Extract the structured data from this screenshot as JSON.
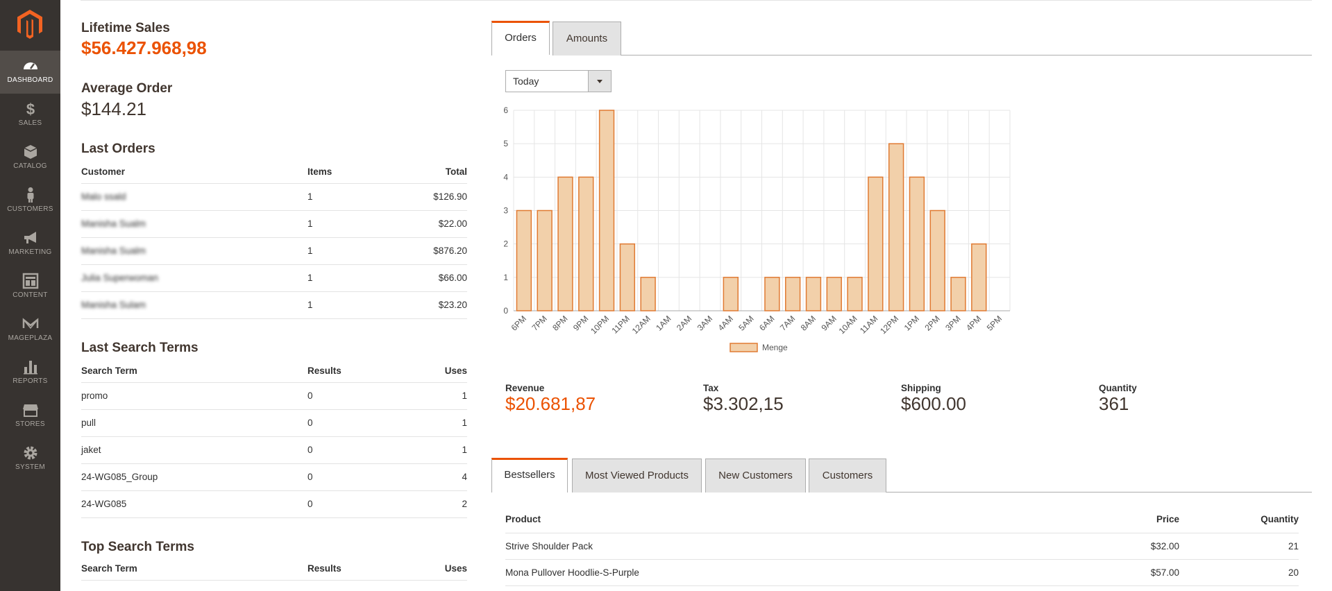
{
  "nav": [
    {
      "label": "DASHBOARD",
      "icon": "dashboard-icon",
      "active": true
    },
    {
      "label": "SALES",
      "icon": "dollar-icon"
    },
    {
      "label": "CATALOG",
      "icon": "box-icon"
    },
    {
      "label": "CUSTOMERS",
      "icon": "person-icon"
    },
    {
      "label": "MARKETING",
      "icon": "megaphone-icon"
    },
    {
      "label": "CONTENT",
      "icon": "layout-icon"
    },
    {
      "label": "MAGEPLAZA",
      "icon": "mageplaza-icon"
    },
    {
      "label": "REPORTS",
      "icon": "bar-chart-icon"
    },
    {
      "label": "STORES",
      "icon": "store-icon"
    },
    {
      "label": "SYSTEM",
      "icon": "gear-icon"
    }
  ],
  "lifetime": {
    "label": "Lifetime Sales",
    "value": "$56.427.968,98"
  },
  "average": {
    "label": "Average Order",
    "value": "$144.21"
  },
  "last_orders": {
    "title": "Last Orders",
    "headers": [
      "Customer",
      "Items",
      "Total"
    ],
    "rows": [
      [
        "Malo ssald",
        "1",
        "$126.90"
      ],
      [
        "Manisha Sualm",
        "1",
        "$22.00"
      ],
      [
        "Manisha Sualm",
        "1",
        "$876.20"
      ],
      [
        "Julia Superwoman",
        "1",
        "$66.00"
      ],
      [
        "Manisha Sulam",
        "1",
        "$23.20"
      ]
    ]
  },
  "last_search": {
    "title": "Last Search Terms",
    "headers": [
      "Search Term",
      "Results",
      "Uses"
    ],
    "rows": [
      [
        "promo",
        "0",
        "1"
      ],
      [
        "pull",
        "0",
        "1"
      ],
      [
        "jaket",
        "0",
        "1"
      ],
      [
        "24-WG085_Group",
        "0",
        "4"
      ],
      [
        "24-WG085",
        "0",
        "2"
      ]
    ]
  },
  "top_search": {
    "title": "Top Search Terms",
    "headers": [
      "Search Term",
      "Results",
      "Uses"
    ]
  },
  "chart_tabs": [
    "Orders",
    "Amounts"
  ],
  "period": {
    "selected": "Today"
  },
  "chart_data": {
    "type": "bar",
    "categories": [
      "6PM",
      "7PM",
      "8PM",
      "9PM",
      "10PM",
      "11PM",
      "12AM",
      "1AM",
      "2AM",
      "3AM",
      "4AM",
      "5AM",
      "6AM",
      "7AM",
      "8AM",
      "9AM",
      "10AM",
      "11AM",
      "12PM",
      "1PM",
      "2PM",
      "3PM",
      "4PM",
      "5PM"
    ],
    "series": [
      {
        "name": "Menge",
        "values": [
          3,
          3,
          4,
          4,
          6,
          2,
          1,
          0,
          0,
          0,
          1,
          0,
          1,
          1,
          1,
          1,
          1,
          4,
          5,
          4,
          3,
          1,
          2,
          0
        ]
      }
    ],
    "ylim": [
      0,
      6
    ],
    "yticks": [
      0,
      1,
      2,
      3,
      4,
      5,
      6
    ],
    "grid": true,
    "legend": "bottom",
    "colors": {
      "fill": "#f2d0aa",
      "stroke": "#e07a32"
    }
  },
  "totals": [
    {
      "label": "Revenue",
      "value": "$20.681,87"
    },
    {
      "label": "Tax",
      "value": "$3.302,15"
    },
    {
      "label": "Shipping",
      "value": "$600.00"
    },
    {
      "label": "Quantity",
      "value": "361"
    }
  ],
  "bottom_tabs": [
    "Bestsellers",
    "Most Viewed Products",
    "New Customers",
    "Customers"
  ],
  "bestsellers": {
    "headers": [
      "Product",
      "Price",
      "Quantity"
    ],
    "rows": [
      [
        "Strive Shoulder Pack",
        "$32.00",
        "21"
      ],
      [
        "Mona Pullover Hoodlie-S-Purple",
        "$57.00",
        "20"
      ]
    ]
  },
  "colors": {
    "accent": "#eb5202",
    "sidebar": "#373330",
    "sidebar_active": "#524d49"
  }
}
